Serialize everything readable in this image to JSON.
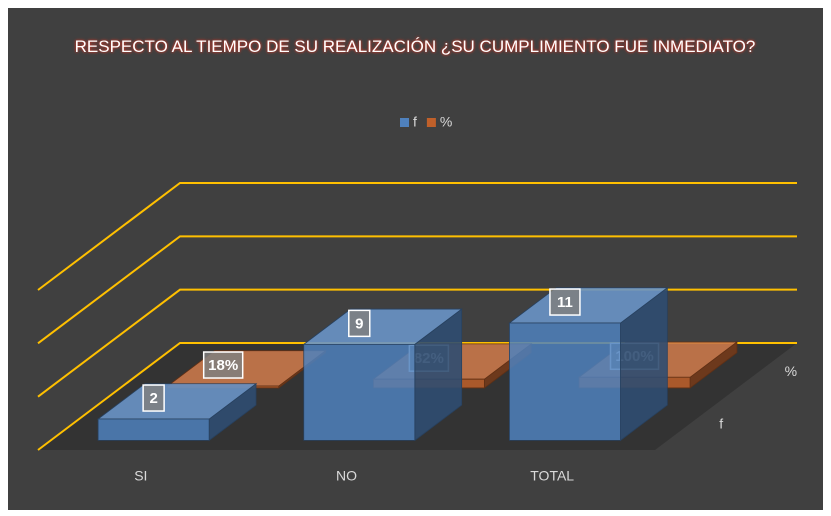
{
  "chart_data": {
    "type": "bar3d",
    "title": "RESPECTO AL TIEMPO DE SU REALIZACIÓN ¿SU CUMPLIMIENTO FUE INMEDIATO?",
    "categories": [
      "SI",
      "NO",
      "TOTAL"
    ],
    "series": [
      {
        "name": "f",
        "color": "#4f81bd",
        "values": [
          2,
          9,
          11
        ]
      },
      {
        "name": "%",
        "color": "#c0602a",
        "values": [
          0.18,
          0.82,
          1
        ],
        "value_labels": [
          "18%",
          "82%",
          "100%"
        ]
      }
    ],
    "ylim": [
      0,
      15
    ],
    "yticks": [
      0,
      5,
      10,
      15
    ],
    "grid": true,
    "grid_color": "#ffc000",
    "legend": "top"
  }
}
